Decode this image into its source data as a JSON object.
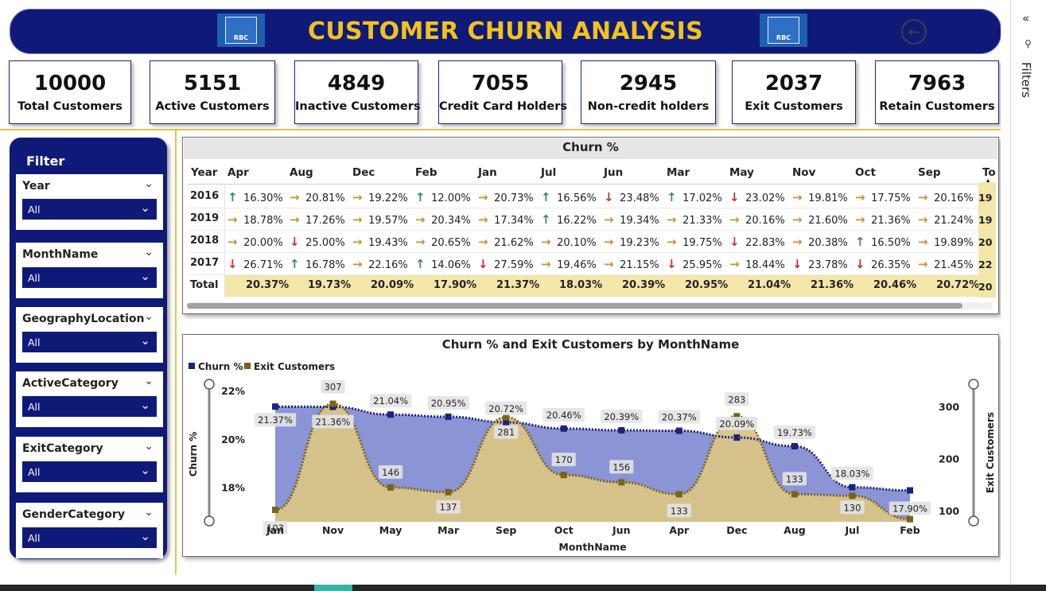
{
  "header": {
    "title": "CUSTOMER CHURN ANALYSIS",
    "logo_text": "RBC",
    "back_icon": "back-arrow-icon"
  },
  "kpis": [
    {
      "value": "10000",
      "label": "Total Customers"
    },
    {
      "value": "5151",
      "label": "Active Customers"
    },
    {
      "value": "4849",
      "label": "Inactive Customers"
    },
    {
      "value": "7055",
      "label": "Credit Card Holders"
    },
    {
      "value": "2945",
      "label": "Non-credit holders"
    },
    {
      "value": "2037",
      "label": "Exit Customers"
    },
    {
      "value": "7963",
      "label": "Retain Customers"
    }
  ],
  "filter_panel": {
    "title": "Filter",
    "slicers": [
      {
        "label": "Year",
        "value": "All"
      },
      {
        "label": "MonthName",
        "value": "All"
      },
      {
        "label": "GeographyLocation",
        "value": "All"
      },
      {
        "label": "ActiveCategory",
        "value": "All"
      },
      {
        "label": "ExitCategory",
        "value": "All"
      },
      {
        "label": "GenderCategory",
        "value": "All"
      }
    ]
  },
  "churn_table": {
    "title": "Churn %",
    "year_header": "Year",
    "months": [
      "Apr",
      "Aug",
      "Dec",
      "Feb",
      "Jan",
      "Jul",
      "Jun",
      "Mar",
      "May",
      "Nov",
      "Oct",
      "Sep"
    ],
    "total_header": "To",
    "rows": [
      {
        "year": "2016",
        "cells": [
          [
            "up",
            "16.30%"
          ],
          [
            "right",
            "20.81%"
          ],
          [
            "right",
            "19.22%"
          ],
          [
            "up",
            "12.00%"
          ],
          [
            "right",
            "20.73%"
          ],
          [
            "up",
            "16.56%"
          ],
          [
            "down",
            "23.48%"
          ],
          [
            "up",
            "17.02%"
          ],
          [
            "down",
            "23.02%"
          ],
          [
            "right",
            "19.81%"
          ],
          [
            "right",
            "17.75%"
          ],
          [
            "right",
            "20.16%"
          ]
        ],
        "total": "19"
      },
      {
        "year": "2019",
        "cells": [
          [
            "right",
            "18.78%"
          ],
          [
            "right",
            "17.26%"
          ],
          [
            "right",
            "19.57%"
          ],
          [
            "right",
            "20.34%"
          ],
          [
            "right",
            "17.34%"
          ],
          [
            "up",
            "16.22%"
          ],
          [
            "right",
            "19.34%"
          ],
          [
            "right",
            "21.33%"
          ],
          [
            "right",
            "20.16%"
          ],
          [
            "right",
            "21.60%"
          ],
          [
            "right",
            "21.36%"
          ],
          [
            "right",
            "21.24%"
          ]
        ],
        "total": "19"
      },
      {
        "year": "2018",
        "cells": [
          [
            "right",
            "20.00%"
          ],
          [
            "down",
            "25.00%"
          ],
          [
            "right",
            "19.43%"
          ],
          [
            "right",
            "20.65%"
          ],
          [
            "right",
            "21.62%"
          ],
          [
            "right",
            "20.10%"
          ],
          [
            "right",
            "19.23%"
          ],
          [
            "right",
            "19.75%"
          ],
          [
            "down",
            "22.83%"
          ],
          [
            "right",
            "20.38%"
          ],
          [
            "up",
            "16.50%"
          ],
          [
            "right",
            "19.89%"
          ]
        ],
        "total": "20"
      },
      {
        "year": "2017",
        "cells": [
          [
            "down",
            "26.71%"
          ],
          [
            "up",
            "16.78%"
          ],
          [
            "right",
            "22.16%"
          ],
          [
            "up",
            "14.06%"
          ],
          [
            "down",
            "27.59%"
          ],
          [
            "right",
            "19.46%"
          ],
          [
            "right",
            "21.15%"
          ],
          [
            "down",
            "25.95%"
          ],
          [
            "right",
            "18.44%"
          ],
          [
            "down",
            "23.78%"
          ],
          [
            "down",
            "26.35%"
          ],
          [
            "right",
            "21.45%"
          ]
        ],
        "total": "22"
      }
    ],
    "total_row": {
      "label": "Total",
      "cells": [
        "20.37%",
        "19.73%",
        "20.09%",
        "17.90%",
        "21.37%",
        "18.03%",
        "20.39%",
        "20.95%",
        "21.04%",
        "21.36%",
        "20.46%",
        "20.72%"
      ],
      "total": "20"
    }
  },
  "chart_data": {
    "type": "area",
    "title": "Churn % and Exit Customers by MonthName",
    "xlabel": "MonthName",
    "ylabel": "Churn %",
    "y2label": "Exit Customers",
    "categories": [
      "Jan",
      "Nov",
      "May",
      "Mar",
      "Sep",
      "Oct",
      "Jun",
      "Apr",
      "Dec",
      "Aug",
      "Jul",
      "Feb"
    ],
    "series": [
      {
        "name": "Churn %",
        "axis": "left",
        "color": "#1a237e",
        "fill": "#8b94d4",
        "values": [
          21.37,
          21.36,
          21.04,
          20.95,
          20.72,
          20.46,
          20.39,
          20.37,
          20.09,
          19.73,
          18.03,
          17.9
        ],
        "labels": [
          "21.37%",
          "21.36%",
          "21.04%",
          "20.95%",
          "20.72%",
          "20.46%",
          "20.39%",
          "20.37%",
          "20.09%",
          "19.73%",
          "18.03%",
          "17.90%"
        ]
      },
      {
        "name": "Exit Customers",
        "axis": "right",
        "color": "#7a6318",
        "fill": "#d9c487",
        "values": [
          103,
          307,
          146,
          137,
          281,
          170,
          156,
          133,
          283,
          133,
          130,
          85
        ],
        "labels": [
          "103",
          "307",
          "146",
          "137",
          "281",
          "170",
          "156",
          "133",
          "283",
          "133",
          "130",
          ""
        ]
      }
    ],
    "y_ticks": [
      "22%",
      "20%",
      "18%"
    ],
    "ylim": [
      16.6,
      22.2
    ],
    "y2_ticks": [
      "300",
      "200",
      "100"
    ],
    "y2lim": [
      80,
      340
    ],
    "legend_position": "top-left"
  },
  "filters_pane": {
    "label": "Filters"
  }
}
